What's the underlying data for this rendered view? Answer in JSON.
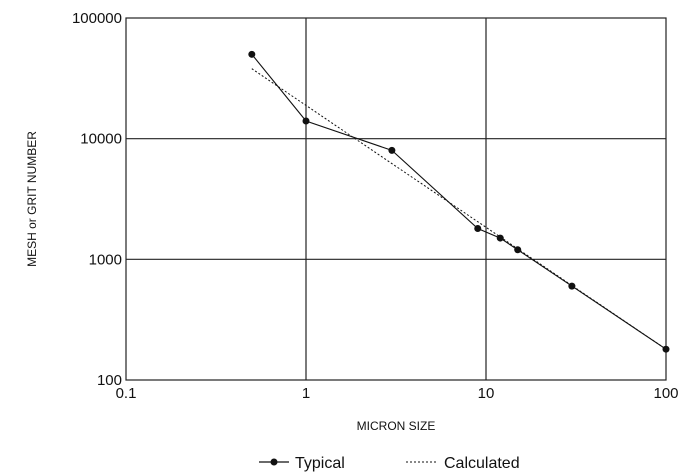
{
  "chart_data": {
    "type": "line",
    "x_scale": "log",
    "y_scale": "log",
    "xlim": [
      0.1,
      100
    ],
    "ylim": [
      100,
      100000
    ],
    "xlabel": "MICRON SIZE",
    "ylabel": "MESH or GRIT NUMBER",
    "x_ticks": [
      "0.1",
      "1",
      "10",
      "100"
    ],
    "y_ticks": [
      "100",
      "1000",
      "10000",
      "100000"
    ],
    "grid": true,
    "legend_position": "bottom",
    "series": [
      {
        "name": "Typical",
        "style": "solid-markers",
        "color": "#111111",
        "x": [
          0.5,
          1,
          3,
          9,
          12,
          15,
          30,
          100
        ],
        "y": [
          50000,
          14000,
          8000,
          1800,
          1500,
          1200,
          600,
          180
        ]
      },
      {
        "name": "Calculated",
        "style": "dotted",
        "color": "#111111",
        "x": [
          0.5,
          100
        ],
        "y": [
          38000,
          180
        ]
      }
    ]
  }
}
